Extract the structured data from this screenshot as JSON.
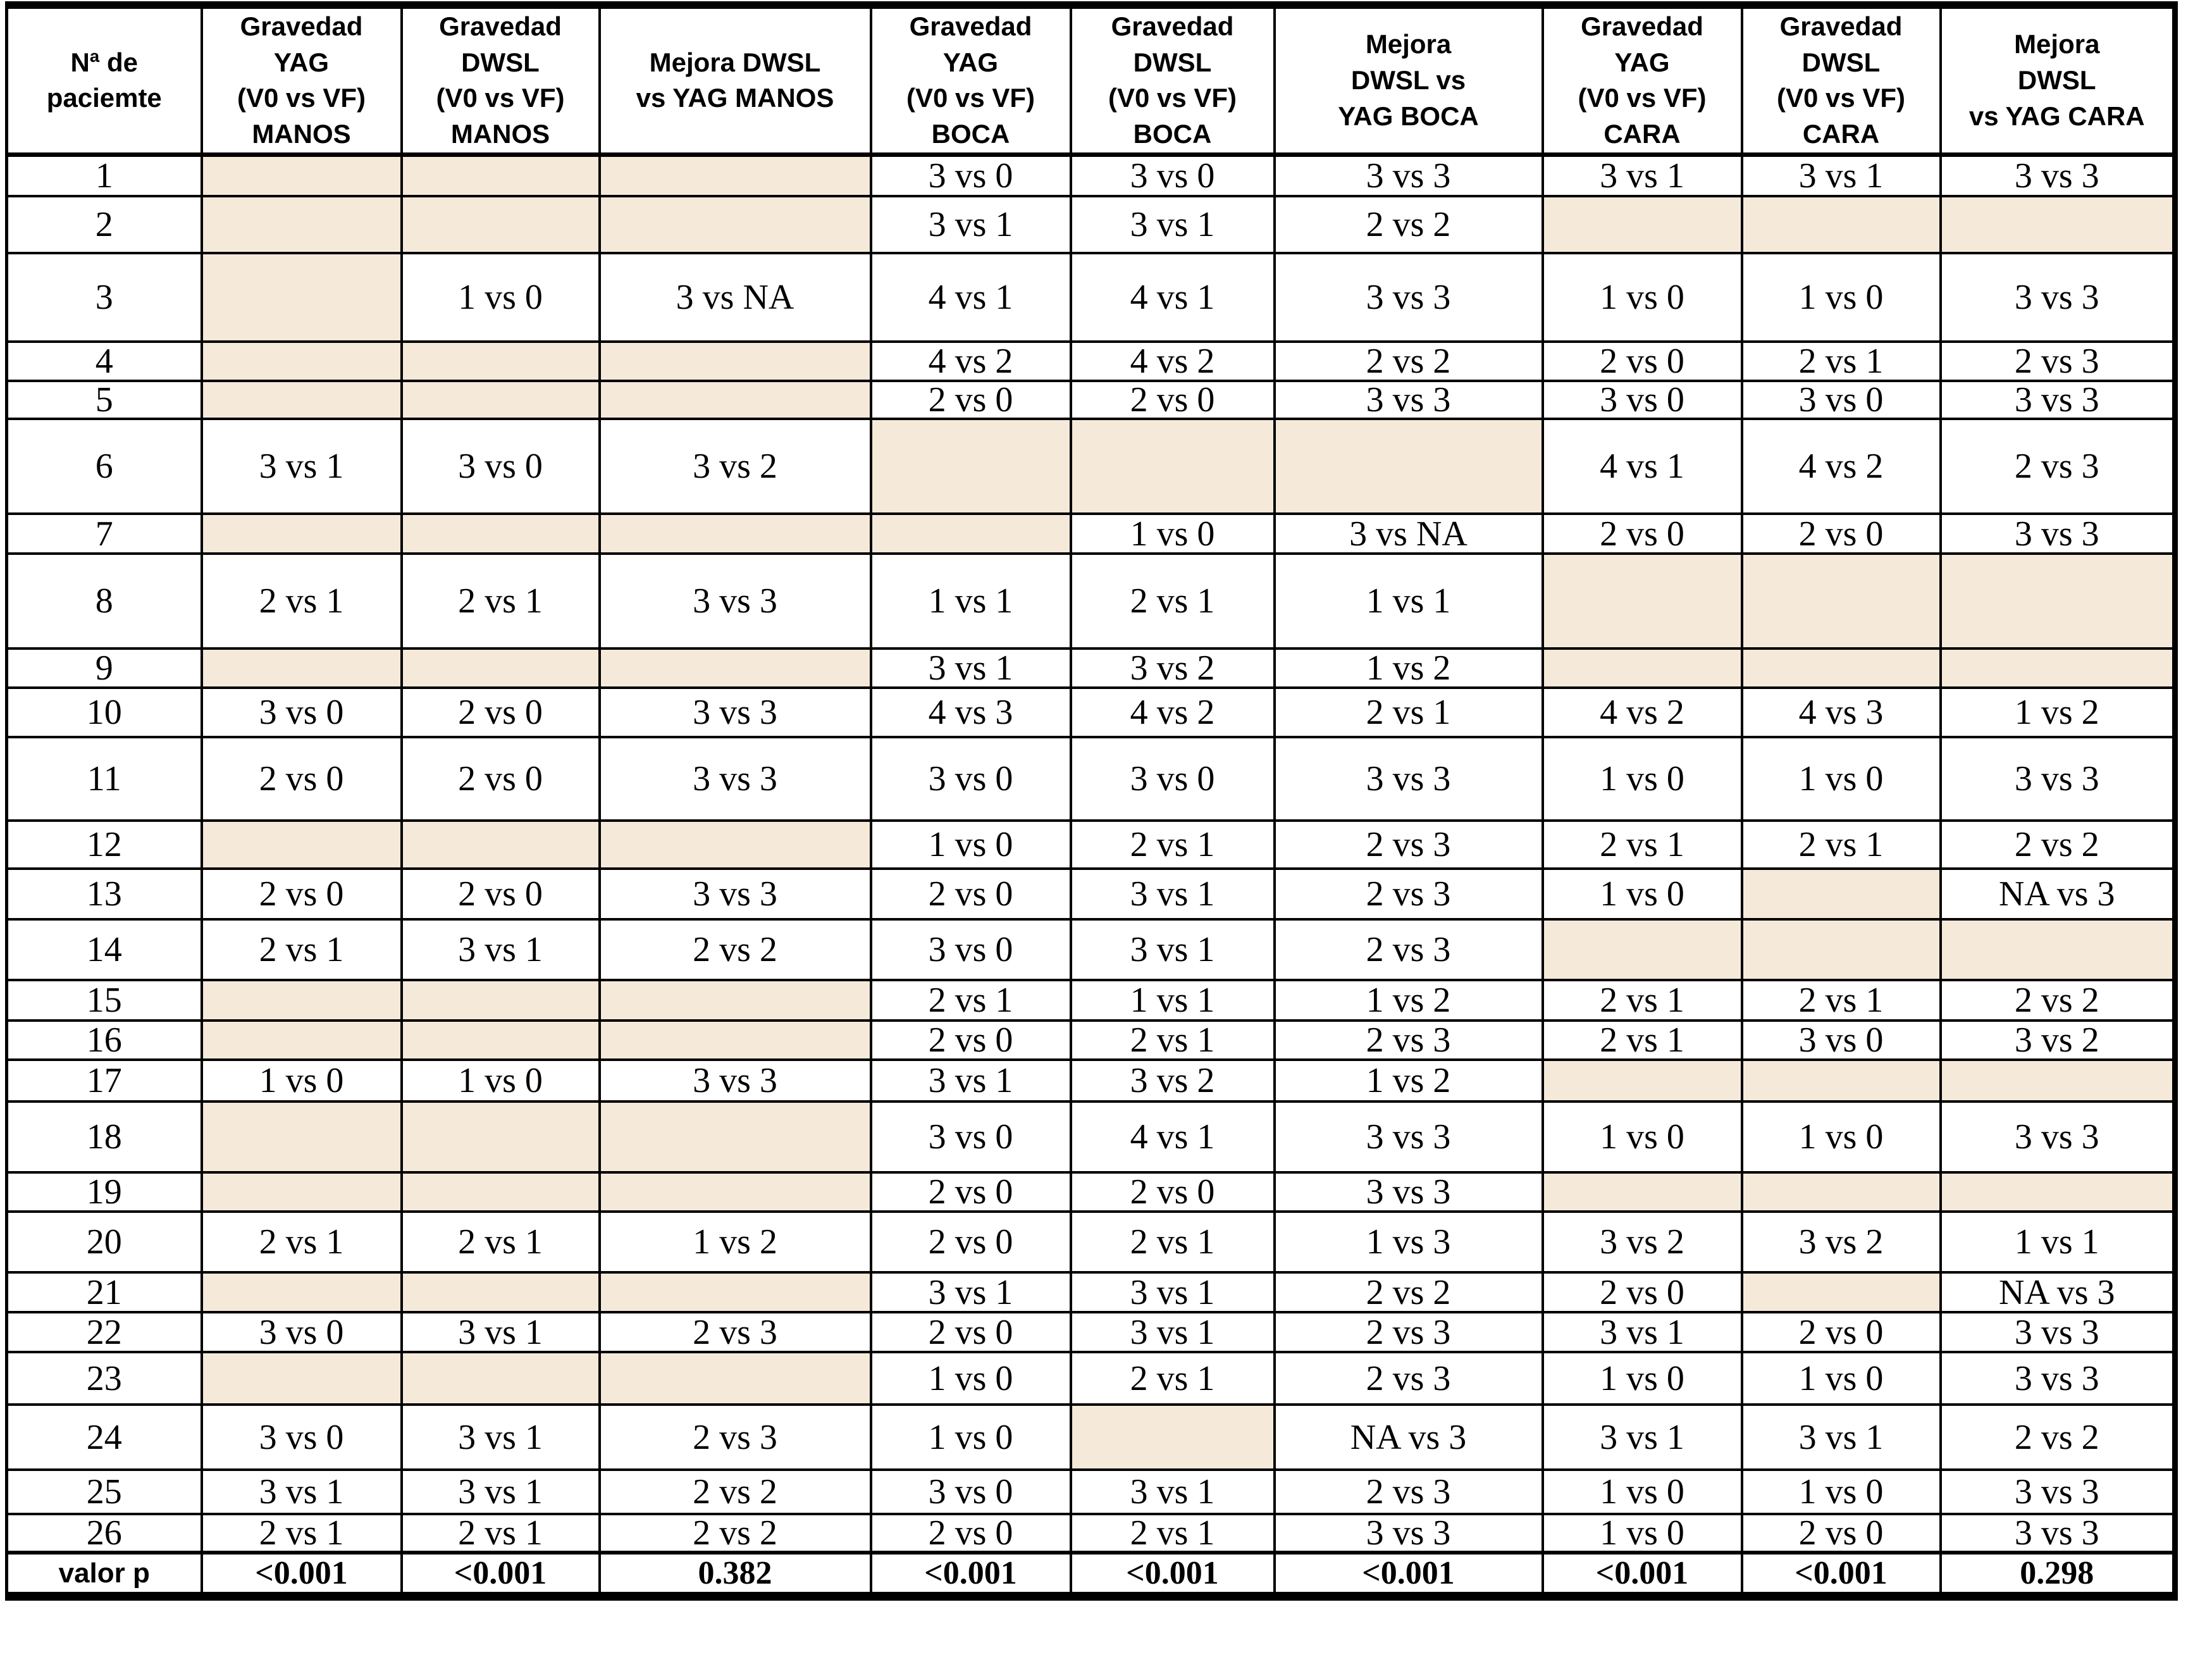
{
  "table": {
    "empty_cell_color": "#f5e9d9",
    "border_color": "#000000",
    "columns": [
      "Nª de\npaciemte",
      "Gravedad\nYAG\n(V0 vs VF)\nMANOS",
      "Gravedad\nDWSL\n(V0 vs VF)\nMANOS",
      "Mejora DWSL\nvs YAG MANOS",
      "Gravedad\nYAG\n(V0 vs VF)\nBOCA",
      "Gravedad\nDWSL\n(V0 vs VF)\nBOCA",
      "Mejora\nDWSL vs\nYAG BOCA",
      "Gravedad\nYAG\n(V0 vs VF)\nCARA",
      "Gravedad\nDWSL\n(V0 vs VF)\nCARA",
      "Mejora\nDWSL\nvs YAG CARA"
    ],
    "rows": [
      {
        "patient": "1",
        "cells": [
          "",
          "",
          "",
          "3 vs 0",
          "3 vs 0",
          "3 vs 3",
          "3 vs 1",
          "3 vs 1",
          "3 vs 3"
        ]
      },
      {
        "patient": "2",
        "cells": [
          "",
          "",
          "",
          "3 vs 1",
          "3 vs 1",
          "2 vs 2",
          "",
          "",
          ""
        ]
      },
      {
        "patient": "3",
        "cells": [
          "",
          "1 vs 0",
          "3 vs NA",
          "4 vs 1",
          "4 vs 1",
          "3 vs 3",
          "1 vs 0",
          "1 vs 0",
          "3 vs 3"
        ]
      },
      {
        "patient": "4",
        "cells": [
          "",
          "",
          "",
          "4 vs 2",
          "4 vs 2",
          "2 vs 2",
          "2 vs 0",
          "2 vs 1",
          "2 vs 3"
        ]
      },
      {
        "patient": "5",
        "cells": [
          "",
          "",
          "",
          "2 vs 0",
          "2 vs 0",
          "3 vs 3",
          "3 vs 0",
          "3 vs 0",
          "3 vs 3"
        ]
      },
      {
        "patient": "6",
        "cells": [
          "3 vs 1",
          "3 vs 0",
          "3 vs 2",
          "",
          "",
          "",
          "4 vs 1",
          "4 vs 2",
          "2 vs 3"
        ]
      },
      {
        "patient": "7",
        "cells": [
          "",
          "",
          "",
          "",
          "1 vs 0",
          "3 vs NA",
          "2 vs 0",
          "2 vs 0",
          "3 vs 3"
        ]
      },
      {
        "patient": "8",
        "cells": [
          "2 vs 1",
          "2 vs 1",
          "3 vs 3",
          "1 vs 1",
          "2 vs 1",
          "1 vs 1",
          "",
          "",
          ""
        ]
      },
      {
        "patient": "9",
        "cells": [
          "",
          "",
          "",
          "3 vs 1",
          "3 vs 2",
          "1 vs 2",
          "",
          "",
          ""
        ]
      },
      {
        "patient": "10",
        "cells": [
          "3 vs 0",
          "2 vs 0",
          "3 vs 3",
          "4 vs 3",
          "4 vs 2",
          "2 vs 1",
          "4 vs 2",
          "4 vs 3",
          "1 vs 2"
        ]
      },
      {
        "patient": "11",
        "cells": [
          "2 vs 0",
          "2 vs 0",
          "3 vs 3",
          "3 vs 0",
          "3 vs 0",
          "3 vs 3",
          "1 vs 0",
          "1 vs 0",
          "3 vs 3"
        ]
      },
      {
        "patient": "12",
        "cells": [
          "",
          "",
          "",
          "1 vs 0",
          "2 vs 1",
          "2 vs 3",
          "2 vs 1",
          "2 vs 1",
          "2 vs 2"
        ]
      },
      {
        "patient": "13",
        "cells": [
          "2 vs 0",
          "2 vs 0",
          "3 vs 3",
          "2 vs 0",
          "3 vs 1",
          "2 vs 3",
          "1 vs 0",
          "",
          "NA vs 3"
        ]
      },
      {
        "patient": "14",
        "cells": [
          "2 vs 1",
          "3 vs 1",
          "2 vs 2",
          "3 vs 0",
          "3 vs 1",
          "2 vs 3",
          "",
          "",
          ""
        ]
      },
      {
        "patient": "15",
        "cells": [
          "",
          "",
          "",
          "2 vs 1",
          "1 vs 1",
          "1 vs 2",
          "2 vs 1",
          "2 vs 1",
          "2 vs 2"
        ]
      },
      {
        "patient": "16",
        "cells": [
          "",
          "",
          "",
          "2 vs 0",
          "2 vs 1",
          "2 vs 3",
          "2 vs 1",
          "3 vs 0",
          "3 vs 2"
        ]
      },
      {
        "patient": "17",
        "cells": [
          "1 vs 0",
          "1 vs 0",
          "3 vs 3",
          "3 vs 1",
          "3 vs 2",
          "1 vs 2",
          "",
          "",
          ""
        ]
      },
      {
        "patient": "18",
        "cells": [
          "",
          "",
          "",
          "3 vs 0",
          "4 vs 1",
          "3 vs 3",
          "1 vs 0",
          "1 vs 0",
          "3 vs 3"
        ]
      },
      {
        "patient": "19",
        "cells": [
          "",
          "",
          "",
          "2 vs 0",
          "2 vs 0",
          "3 vs 3",
          "",
          "",
          ""
        ]
      },
      {
        "patient": "20",
        "cells": [
          "2 vs 1",
          "2 vs 1",
          "1 vs 2",
          "2 vs 0",
          "2 vs 1",
          "1 vs 3",
          "3 vs 2",
          "3 vs 2",
          "1 vs 1"
        ]
      },
      {
        "patient": "21",
        "cells": [
          "",
          "",
          "",
          "3 vs 1",
          "3 vs 1",
          "2 vs 2",
          "2 vs 0",
          "",
          "NA vs 3"
        ]
      },
      {
        "patient": "22",
        "cells": [
          "3 vs 0",
          "3 vs 1",
          "2 vs 3",
          "2 vs 0",
          "3 vs 1",
          "2 vs 3",
          "3 vs 1",
          "2 vs 0",
          "3 vs 3"
        ]
      },
      {
        "patient": "23",
        "cells": [
          "",
          "",
          "",
          "1 vs 0",
          "2 vs 1",
          "2 vs 3",
          "1 vs 0",
          "1 vs 0",
          "3 vs 3"
        ]
      },
      {
        "patient": "24",
        "cells": [
          "3 vs 0",
          "3 vs 1",
          "2 vs 3",
          "1 vs 0",
          "",
          "NA vs 3",
          "3 vs 1",
          "3 vs 1",
          "2 vs 2"
        ]
      },
      {
        "patient": "25",
        "cells": [
          "3 vs 1",
          "3 vs 1",
          "2 vs 2",
          "3 vs 0",
          "3 vs 1",
          "2 vs 3",
          "1 vs 0",
          "1 vs 0",
          "3 vs 3"
        ]
      },
      {
        "patient": "26",
        "cells": [
          "2 vs 1",
          "2 vs 1",
          "2 vs 2",
          "2 vs 0",
          "2 vs 1",
          "3 vs 3",
          "1 vs 0",
          "2 vs 0",
          "3 vs 3"
        ]
      }
    ],
    "footer": {
      "label": "valor p",
      "values": [
        "<0.001",
        "<0.001",
        "0.382",
        "<0.001",
        "<0.001",
        "<0.001",
        "<0.001",
        "<0.001",
        "0.298"
      ]
    }
  }
}
